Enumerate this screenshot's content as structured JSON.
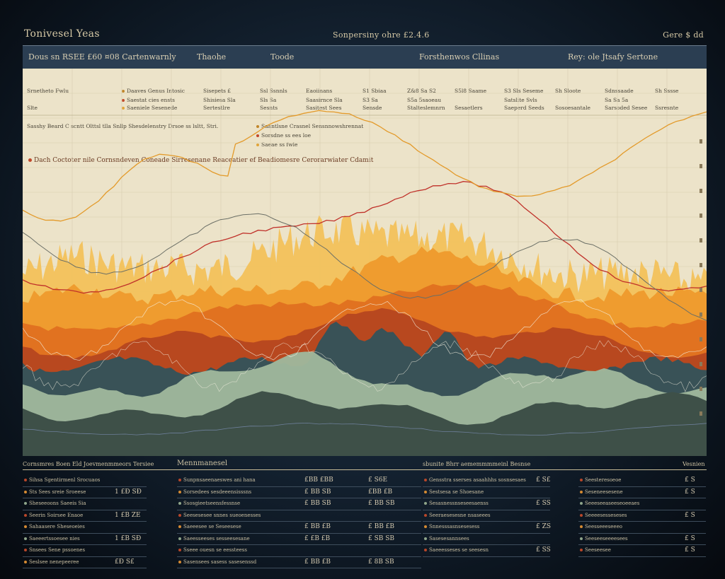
{
  "title_bar": {
    "left": "Tonivesel Yeas",
    "center": "Sonpersiny  ohre £2.4.6",
    "right": "Gere $ dd"
  },
  "header": {
    "left": "Dous sn RSEE £60  ¤08  Cartenwarnly",
    "col1": "Thaohe",
    "col2": "Toode",
    "col3": "Forsthenwos Cllinas",
    "col4": "Rey: ole Jtsafy Sertone"
  },
  "legend": {
    "rows": [
      [
        "Srnetheto Fwlu",
        "Daaves Genus Intosic",
        "Sisepets £",
        "Ssl Ssnnls",
        "Eaoiinans",
        "S1 Sbiaa",
        "Z&8 Sa S2",
        "S5l8 Saame",
        "S3 Sls Seseme",
        "Sh Sloote",
        "Sdnssaade",
        "Sh Sssse"
      ],
      [
        "",
        "Saestat cies ensts",
        "Shisiesa Sla",
        "Sls Sa",
        "Saasirnce Sla",
        "S3 Sa",
        "S5a 5saoeau",
        "",
        "Satslite Svls",
        "",
        "Sa Sa 5a",
        ""
      ],
      [
        "Slte",
        "Saeniele Sesenede",
        "Sertestlre",
        "Sesnts",
        "Sasitest Sees",
        "Sensde",
        "Stalteslemnrn",
        "Sesaetlers",
        "Saeperd Seeds",
        "Sosoesantale",
        "Sarsoded Sesee",
        "Ssresnte"
      ]
    ],
    "note_left": "Sasshy Beard C scntt Olttsl tlla Snllp Shesdelenstry  Drsoe  ss lsltt, Stri.",
    "note_right_1": "Saantlsne Crasnel Sensnnowshrennat",
    "note_right_2": "Sorsdne ss ees loe",
    "note_right_3": "Saeae ss fwle",
    "caption": "Dach  Coctoter nile  Cornsndeven  Coneade  Sirresenane  Reaceatier  ef  Beadiomesre  Cerorarwiater  Cdamit"
  },
  "chart_data": {
    "type": "area",
    "title": "",
    "xlabel": "",
    "ylabel": "",
    "series": [
      {
        "name": "",
        "color": "#f2c25c"
      },
      {
        "name": "",
        "color": "#ee9a2d"
      },
      {
        "name": "",
        "color": "#e0701f"
      },
      {
        "name": "",
        "color": "#b6471f"
      },
      {
        "name": "",
        "color": "#34525a"
      },
      {
        "name": "",
        "color": "#9fb79c"
      },
      {
        "name": "",
        "color": "#3e5048"
      }
    ],
    "lines": [
      {
        "name": "",
        "color": "#c0312a"
      },
      {
        "name": "",
        "color": "#e39a2a"
      },
      {
        "name": "",
        "color": "#6b6f66"
      }
    ],
    "grid": true
  },
  "bottom": {
    "headers": [
      "Cornsmres  Boen  Eld  Joevmenmmeors  Tersiee",
      "Mennmanesel",
      "sbunite  Bhrr  aememmmmeinl  Besnse",
      "Vesnien"
    ],
    "tables": [
      {
        "rows": [
          {
            "label": "Sihsa Sgentirmenl Srocuaos",
            "value": ""
          },
          {
            "label": "Sts Sees sreie Sroeese",
            "value": "1 £Ð SÐ"
          },
          {
            "label": "Sheseeoons Saeeis Sia",
            "value": ""
          },
          {
            "label": "Seerin Soirsee Enaoe",
            "value": "1 £B ZE"
          },
          {
            "label": "Sahaasere Sheseoeies",
            "value": ""
          },
          {
            "label": "Saeeertssoesee nies",
            "value": "1 £B SÐ"
          },
          {
            "label": "Snsees Sene pssoenes",
            "value": ""
          },
          {
            "label": "Seslsee nenepeeree",
            "value": "£Ð S£"
          }
        ]
      },
      {
        "rows": [
          {
            "label": "Sunpnsaeenaeswes ani hana",
            "values": [
              "£BB £BB",
              "£ S6E"
            ]
          },
          {
            "label": "Sorsedees sesdeeensisssns",
            "values": [
              "£ BB SB",
              "£BB £B"
            ]
          },
          {
            "label": "Ssosgieetseensfessnse",
            "values": [
              "£ BB SB",
              "£ BB SB"
            ]
          },
          {
            "label": "Seesesesee snnes sueoenesses",
            "values": [
              "",
              ""
            ]
          },
          {
            "label": "Saeeesee se Seseesese",
            "values": [
              "£ BB £B",
              "£ BB £B"
            ]
          },
          {
            "label": "Saeesseeses sesseesesane",
            "values": [
              "£ £B £B",
              "£ SB SB"
            ]
          },
          {
            "label": "Sseee ouesn se eessteess",
            "values": [
              "",
              ""
            ]
          },
          {
            "label": "Sasensees sasess sasesenssd",
            "values": [
              "£ BB £B",
              "£ 8B SB"
            ]
          }
        ]
      },
      {
        "rows": [
          {
            "label": "Gensstra sserses asaahhhs sosnsesaes",
            "value": "£ S£"
          },
          {
            "label": "Sestsesa se Shoesane",
            "value": ""
          },
          {
            "label": "Sesasnessnseseesaenss",
            "value": "£ SS"
          },
          {
            "label": "Seeraesesesne nsaseees",
            "value": ""
          },
          {
            "label": "Snnesssasnsesesess",
            "value": "£ ZS"
          },
          {
            "label": "Sasesesannsees",
            "value": ""
          },
          {
            "label": "Saeeesseses se seesesn",
            "value": "£ SS"
          }
        ]
      },
      {
        "rows": [
          {
            "label": "Seesteresoeoe",
            "value": "£ S"
          },
          {
            "label": "Seseneesesene",
            "value": "£ S"
          },
          {
            "label": "Seeeseeaseeseoeeaes",
            "value": ""
          },
          {
            "label": "Seeeesesseseses",
            "value": "£ S"
          },
          {
            "label": "Seesseeeseeeo",
            "value": ""
          },
          {
            "label": "Seeseeseeeesees",
            "value": "£ S"
          },
          {
            "label": "Seeseesee",
            "value": "£ S"
          }
        ]
      }
    ]
  }
}
